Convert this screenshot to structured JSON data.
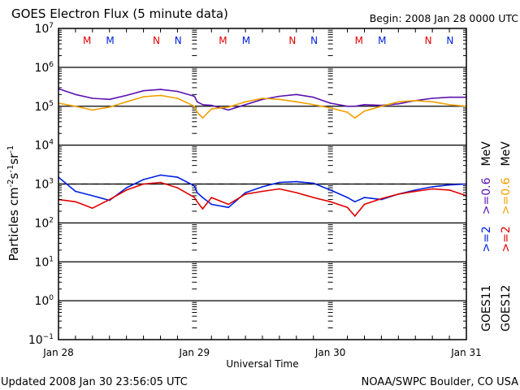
{
  "chart_data": {
    "type": "line",
    "title": "GOES Electron Flux (5 minute data)",
    "subtitle": "Begin: 2008 Jan 28 0000 UTC",
    "xlabel": "Universal Time",
    "ylabel": "Particles cm⁻²s⁻¹sr⁻¹",
    "yscale": "log",
    "ylim": [
      0.1,
      10000000
    ],
    "xlim_days": [
      0,
      3
    ],
    "x_tick_labels": [
      "Jan 28",
      "Jan 29",
      "Jan 30",
      "Jan 31"
    ],
    "y_tick_labels": [
      {
        "base": "10",
        "exp": "7"
      },
      {
        "base": "10",
        "exp": "6"
      },
      {
        "base": "10",
        "exp": "5"
      },
      {
        "base": "10",
        "exp": "4"
      },
      {
        "base": "10",
        "exp": "3"
      },
      {
        "base": "10",
        "exp": "2"
      },
      {
        "base": "10",
        "exp": "1"
      },
      {
        "base": "10",
        "exp": "0"
      },
      {
        "base": "10",
        "exp": "−1"
      }
    ],
    "grid": "horizontal lines at each decade",
    "threshold": {
      "value": 1000,
      "style": "dashed"
    },
    "noon_midnight_markers": [
      {
        "label": "M",
        "day": 0.21,
        "color": "#e00000"
      },
      {
        "label": "M",
        "day": 0.38,
        "color": "#0020e0"
      },
      {
        "label": "N",
        "day": 0.72,
        "color": "#e00000"
      },
      {
        "label": "N",
        "day": 0.88,
        "color": "#0020e0"
      },
      {
        "label": "M",
        "day": 1.21,
        "color": "#e00000"
      },
      {
        "label": "M",
        "day": 1.38,
        "color": "#0020e0"
      },
      {
        "label": "N",
        "day": 1.72,
        "color": "#e00000"
      },
      {
        "label": "N",
        "day": 1.88,
        "color": "#0020e0"
      },
      {
        "label": "M",
        "day": 2.21,
        "color": "#e00000"
      },
      {
        "label": "M",
        "day": 2.38,
        "color": "#0020e0"
      },
      {
        "label": "N",
        "day": 2.72,
        "color": "#e00000"
      },
      {
        "label": "N",
        "day": 2.88,
        "color": "#0020e0"
      }
    ],
    "legend": {
      "placement": "right",
      "columns": [
        {
          "satellite": "GOES11",
          "entries": [
            {
              "label": ">=2",
              "color": "#0020e0"
            },
            {
              "label": ">=0.6",
              "color": "#5a10b0"
            },
            {
              "label": "MeV",
              "color": "#000000"
            }
          ]
        },
        {
          "satellite": "GOES12",
          "entries": [
            {
              "label": ">=2",
              "color": "#e00000"
            },
            {
              "label": ">=0.6",
              "color": "#f0a000"
            },
            {
              "label": "MeV",
              "color": "#000000"
            }
          ]
        }
      ]
    },
    "x_days": [
      0,
      0.125,
      0.25,
      0.375,
      0.5,
      0.625,
      0.75,
      0.875,
      1,
      1.02,
      1.06,
      1.125,
      1.25,
      1.375,
      1.5,
      1.625,
      1.75,
      1.875,
      2,
      2.125,
      2.18,
      2.25,
      2.375,
      2.5,
      2.625,
      2.75,
      2.875,
      3
    ],
    "series": [
      {
        "name": "GOES11 >=0.6 MeV",
        "color": "#5a10b0",
        "values": [
          280000,
          200000,
          160000,
          150000,
          190000,
          250000,
          270000,
          240000,
          180000,
          130000,
          110000,
          105000,
          80000,
          110000,
          150000,
          180000,
          200000,
          170000,
          120000,
          100000,
          100000,
          110000,
          105000,
          115000,
          140000,
          160000,
          170000,
          170000
        ]
      },
      {
        "name": "GOES12 >=0.6 MeV",
        "color": "#f0a000",
        "values": [
          120000,
          100000,
          80000,
          95000,
          130000,
          175000,
          190000,
          160000,
          100000,
          70000,
          50000,
          85000,
          95000,
          130000,
          160000,
          150000,
          130000,
          110000,
          90000,
          70000,
          50000,
          75000,
          100000,
          130000,
          140000,
          130000,
          110000,
          100000
        ]
      },
      {
        "name": "GOES11 >=2 MeV",
        "color": "#0020e0",
        "values": [
          1500,
          650,
          500,
          380,
          800,
          1300,
          1700,
          1500,
          900,
          600,
          450,
          300,
          250,
          600,
          850,
          1100,
          1150,
          1050,
          700,
          450,
          350,
          450,
          400,
          550,
          700,
          850,
          950,
          1000
        ]
      },
      {
        "name": "GOES12 >=2 MeV",
        "color": "#e00000",
        "values": [
          400,
          350,
          240,
          400,
          700,
          1000,
          1100,
          800,
          450,
          350,
          230,
          450,
          300,
          550,
          650,
          750,
          600,
          450,
          350,
          250,
          150,
          300,
          420,
          550,
          650,
          750,
          700,
          500
        ]
      }
    ]
  },
  "footer": {
    "updated": "Updated 2008 Jan 30 23:56:05 UTC",
    "credit": "NOAA/SWPC Boulder, CO USA"
  }
}
